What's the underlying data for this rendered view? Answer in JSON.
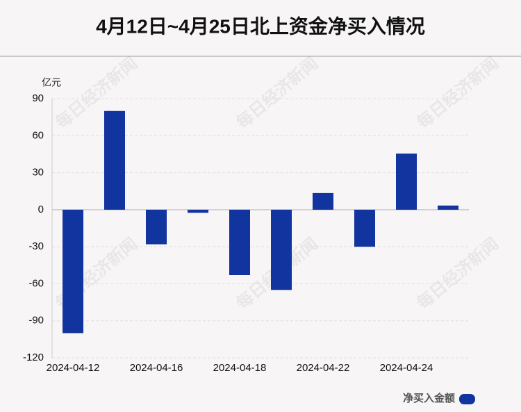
{
  "chart_data": {
    "type": "bar",
    "title": "4月12日~4月25日北上资金净买入情况",
    "y_unit": "亿元",
    "categories": [
      "2024-04-12",
      null,
      "2024-04-16",
      null,
      "2024-04-18",
      null,
      "2024-04-22",
      null,
      "2024-04-24",
      null
    ],
    "series": [
      {
        "name": "净买入金额",
        "color": "#12349e",
        "values": [
          -100,
          80,
          -28,
          -2.5,
          -53,
          -65,
          13.5,
          -30,
          45.5,
          3.4
        ]
      }
    ],
    "ylim": [
      -120,
      90
    ],
    "yticks": [
      -120,
      -90,
      -60,
      -30,
      0,
      30,
      60,
      90
    ],
    "grid": true,
    "legend": "bottom-right",
    "watermark": "每日经济新闻"
  }
}
